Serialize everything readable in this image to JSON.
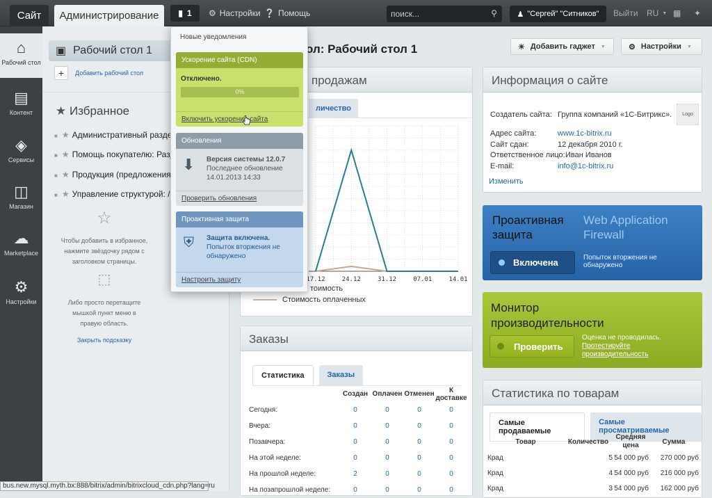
{
  "topbar": {
    "site_tab": "Сайт",
    "admin_tab": "Администрирование",
    "notif_count": "1",
    "settings": "Настройки",
    "help": "Помощь",
    "search_placeholder": "поиск...",
    "user": "\"Сергей\" \"Ситников\"",
    "logout": "Выйти",
    "lang": "RU"
  },
  "leftnav": [
    {
      "label": "Рабочий стол",
      "icon": "home-icon"
    },
    {
      "label": "Контент",
      "icon": "document-icon"
    },
    {
      "label": "Сервисы",
      "icon": "layers-icon"
    },
    {
      "label": "Магазин",
      "icon": "basket-icon"
    },
    {
      "label": "Marketplace",
      "icon": "cloud-download-icon"
    },
    {
      "label": "Настройки",
      "icon": "gear-icon"
    }
  ],
  "favpanel": {
    "desktop": "Рабочий стол 1",
    "add_desktop": "Добавить рабочий стол",
    "favorites_title": "Избранное",
    "items": [
      "Административный раздел",
      "Помощь покупателю: Раздел",
      "Продукция (предложения): Р",
      "Управление структурой: /abo"
    ],
    "hint1": "Чтобы добавить в избранное, нажмите звёздочку рядом с заголовком страницы.",
    "hint2": "Либо просто перетащите мышкой пункт меню в правую область.",
    "close_hint": "Закрыть подсказку"
  },
  "main": {
    "title_fragment": "ол: Рабочий стол 1",
    "add_gadget": "Добавить гаджет",
    "settings": "Настройки"
  },
  "popup": {
    "title": "Новые уведомления",
    "cdn": {
      "title": "Ускорение сайта (CDN)",
      "status": "Отключено.",
      "progress": "0%",
      "progress_value": 0,
      "link": "Включить ускорение сайта"
    },
    "updates": {
      "title": "Обновления",
      "version": "Версия системы 12.0.7",
      "last_label": "Последнее обновление",
      "last_date": "14.01.2013 14:33",
      "link": "Проверить обновления"
    },
    "security": {
      "title": "Проактивная защита",
      "status": "Защита включена.",
      "note": "Попыток вторжения не обнаружено",
      "link": "Настроить защиту"
    }
  },
  "sales": {
    "title_fragment": "продажам",
    "tab_fragment": "личество",
    "legend1_fragment": "тоимость",
    "legend2": "Стоимость оплаченных"
  },
  "chart_data": {
    "type": "line",
    "x": [
      "17.12",
      "24.12",
      "31.12",
      "07.01",
      "14.01"
    ],
    "grid": true,
    "series": [
      {
        "name": "Стоимость",
        "color": "#2a7f8f",
        "values": [
          0,
          10,
          0,
          0,
          0
        ]
      },
      {
        "name": "Стоимость оплаченных",
        "color": "#c8a88c",
        "values": [
          0,
          0.4,
          0,
          0,
          0
        ]
      }
    ],
    "ylim": [
      0,
      12
    ]
  },
  "orders": {
    "title": "Заказы",
    "tabs": [
      "Статистика",
      "Заказы"
    ],
    "columns": [
      "Создан",
      "Оплачен",
      "Отменен",
      "К доставке"
    ],
    "rows": [
      {
        "label": "Сегодня:",
        "v": [
          "0",
          "0",
          "0",
          "0"
        ]
      },
      {
        "label": "Вчера:",
        "v": [
          "0",
          "0",
          "0",
          "0"
        ]
      },
      {
        "label": "Позавчера:",
        "v": [
          "0",
          "0",
          "0",
          "0"
        ]
      },
      {
        "label": "На этой неделе:",
        "v": [
          "0",
          "0",
          "0",
          "0"
        ]
      },
      {
        "label": "На прошлой неделе:",
        "v": [
          "2",
          "0",
          "0",
          "0"
        ]
      },
      {
        "label": "На позапрошлой неделе:",
        "v": [
          "0",
          "0",
          "0",
          "0"
        ]
      }
    ]
  },
  "siteinfo": {
    "title": "Информация о сайте",
    "creator_label": "Создатель сайта:",
    "creator": "Группа компаний «1С-Битрикс».",
    "logo": "Logo",
    "address_label": "Адрес сайта:",
    "address": "www.1c-bitrix.ru",
    "date_label": "Сайт сдан:",
    "date": "12 декабря 2010 г.",
    "person_label": "Ответственное лицо:",
    "person": "Иван Иванов",
    "email_label": "E-mail:",
    "email": "info@1c-bitrix.ru",
    "edit": "Изменить"
  },
  "waf": {
    "title": "Проактивная защита",
    "subtitle": "Web Application Firewall",
    "button": "Включена",
    "note": "Попыток вторжения не обнаружено"
  },
  "perf": {
    "title": "Монитор производительности",
    "button": "Проверить",
    "note": "Оценка не проводилась.",
    "link": "Протестируйте производительность"
  },
  "products": {
    "title": "Статистика по товарам",
    "tabs": [
      "Самые продаваемые",
      "Самые просматриваемые"
    ],
    "columns": [
      "Товар",
      "Количество",
      "Средняя цена",
      "Сумма"
    ],
    "rows": [
      [
        "Крад",
        "5",
        "54 000 руб",
        "270 000 руб"
      ],
      [
        "Крад",
        "4",
        "54 000 руб",
        "216 000 руб"
      ],
      [
        "Крад",
        "3",
        "54 000 руб",
        "162 000 руб"
      ]
    ]
  },
  "statusbar": "bus.new.mysql.myth.bx:888/bitrix/admin/bitrixcloud_cdn.php?lang=ru"
}
